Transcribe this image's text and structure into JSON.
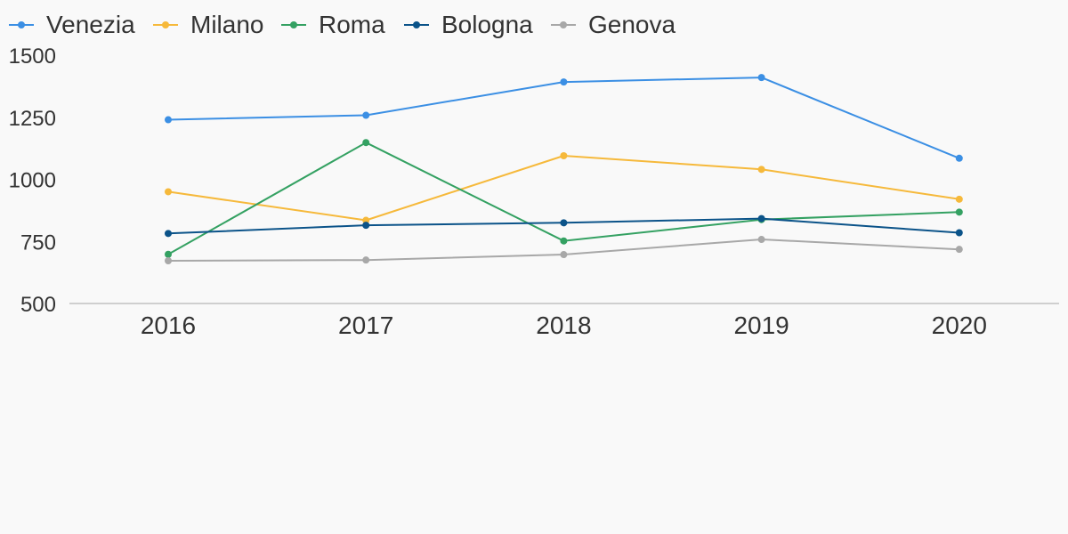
{
  "chart_data": {
    "type": "line",
    "x": [
      "2016",
      "2017",
      "2018",
      "2019",
      "2020"
    ],
    "series": [
      {
        "name": "Venezia",
        "color": "#3b8fe4",
        "values": [
          1240,
          1258,
          1392,
          1410,
          1085
        ]
      },
      {
        "name": "Milano",
        "color": "#f6b93b",
        "values": [
          950,
          835,
          1095,
          1040,
          920
        ]
      },
      {
        "name": "Roma",
        "color": "#34a162",
        "values": [
          698,
          1148,
          752,
          838,
          868
        ]
      },
      {
        "name": "Bologna",
        "color": "#0b5389",
        "values": [
          782,
          815,
          825,
          842,
          785
        ]
      },
      {
        "name": "Genova",
        "color": "#a8a8a8",
        "values": [
          672,
          675,
          697,
          758,
          718
        ]
      }
    ],
    "y_ticks": [
      "1500",
      "1250",
      "1000",
      "750",
      "500"
    ],
    "ylim": [
      500,
      1500
    ],
    "title": "",
    "xlabel": "",
    "ylabel": "",
    "legend_position": "top-left",
    "grid": false
  }
}
